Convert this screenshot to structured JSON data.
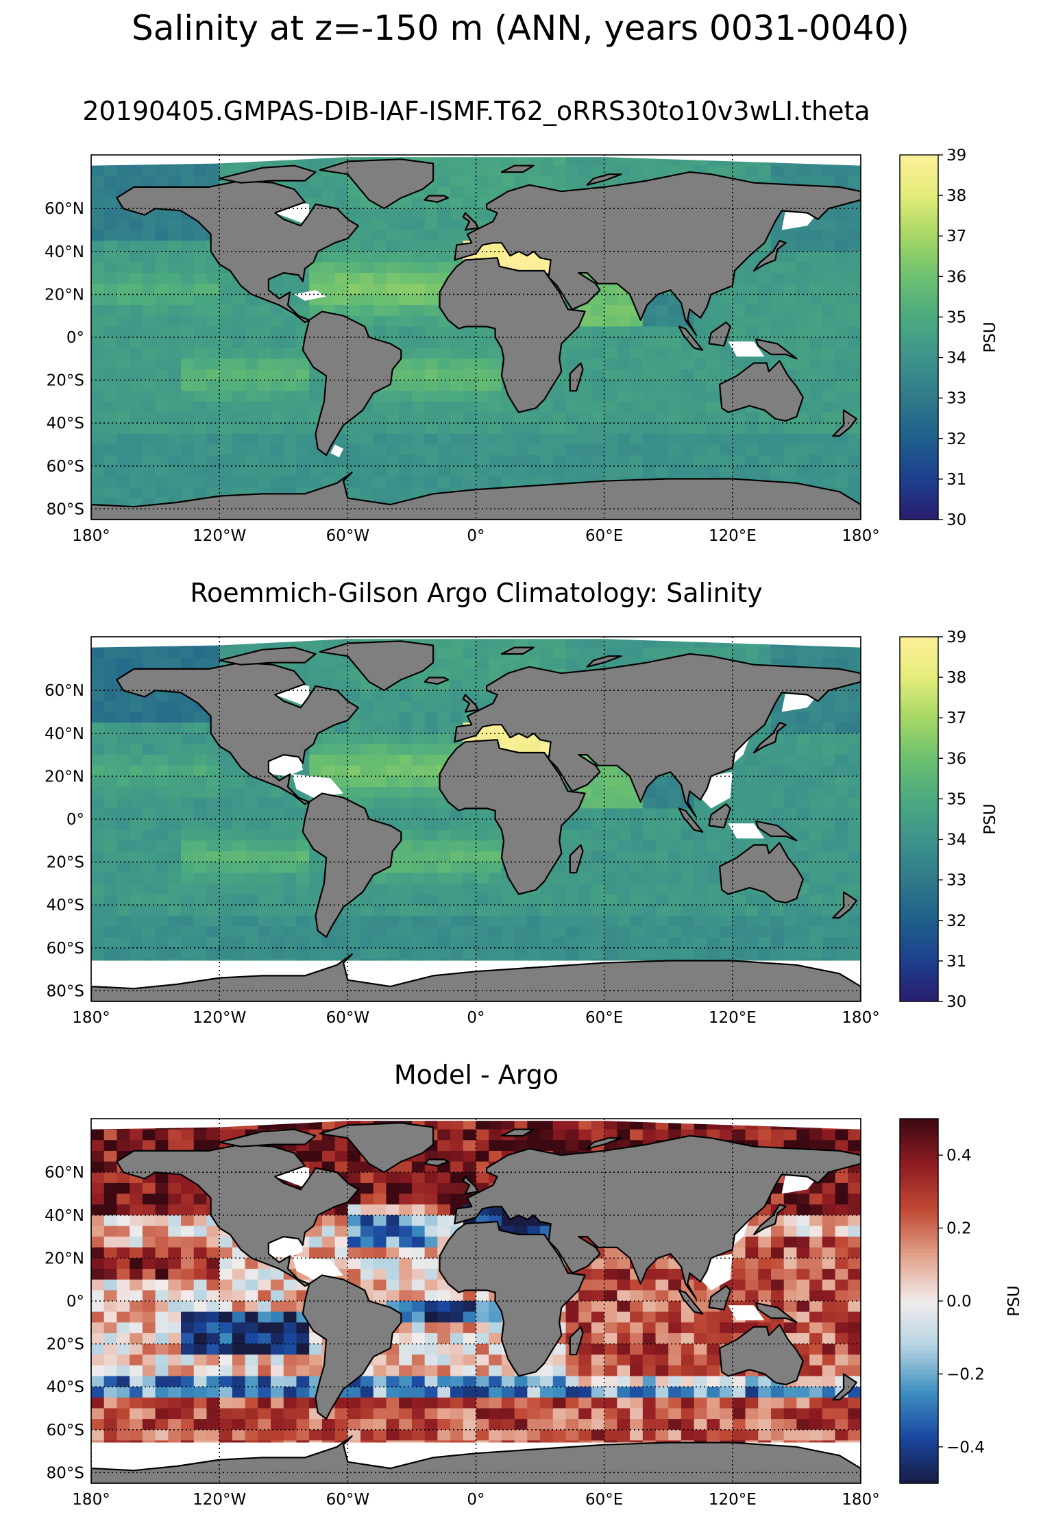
{
  "figure": {
    "suptitle": "Salinity at z=-150 m (ANN, years 0031-0040)"
  },
  "colors": {
    "land": "#7f7f7f",
    "no_data": "#ffffff",
    "haline_colormap": [
      "#2a1d6e",
      "#1e3f8f",
      "#1f5f8b",
      "#2f7a8a",
      "#3d938a",
      "#4caa80",
      "#6cc070",
      "#a6d765",
      "#e4ec7a",
      "#fdef9a"
    ],
    "balance_colormap": [
      "#181c43",
      "#1a47a0",
      "#3d8ec0",
      "#b4d3e2",
      "#f1ecec",
      "#e2a18a",
      "#c04a35",
      "#8f1c22",
      "#3c0912"
    ]
  },
  "chart_data": [
    {
      "type": "heatmap",
      "title": "20190405.GMPAS-DIB-IAF-ISMF.T62_oRRS30to10v3wLI.theta",
      "xlabel": "",
      "ylabel": "",
      "xlim": [
        -180,
        180
      ],
      "ylim": [
        -85,
        85
      ],
      "x_ticks": [
        -180,
        -120,
        -60,
        0,
        60,
        120,
        180
      ],
      "x_tick_labels": [
        "180°",
        "120°W",
        "60°W",
        "0°",
        "60°E",
        "120°E",
        "180°"
      ],
      "y_ticks": [
        -80,
        -60,
        -40,
        -20,
        0,
        20,
        40,
        60
      ],
      "y_tick_labels": [
        "80°S",
        "60°S",
        "40°S",
        "20°S",
        "0°",
        "20°N",
        "40°N",
        "60°N"
      ],
      "grid": true,
      "colorbar": {
        "label": "PSU",
        "range": [
          30,
          39
        ],
        "ticks": [
          30,
          31,
          32,
          33,
          34,
          35,
          36,
          37,
          38,
          39
        ],
        "tick_labels": [
          "30",
          "31",
          "32",
          "33",
          "34",
          "35",
          "36",
          "37",
          "38",
          "39"
        ],
        "colormap": "haline"
      }
    },
    {
      "type": "heatmap",
      "title": "Roemmich-Gilson Argo Climatology: Salinity",
      "xlabel": "",
      "ylabel": "",
      "xlim": [
        -180,
        180
      ],
      "ylim": [
        -85,
        85
      ],
      "x_ticks": [
        -180,
        -120,
        -60,
        0,
        60,
        120,
        180
      ],
      "x_tick_labels": [
        "180°",
        "120°W",
        "60°W",
        "0°",
        "60°E",
        "120°E",
        "180°"
      ],
      "y_ticks": [
        -80,
        -60,
        -40,
        -20,
        0,
        20,
        40,
        60
      ],
      "y_tick_labels": [
        "80°S",
        "60°S",
        "40°S",
        "20°S",
        "0°",
        "20°N",
        "40°N",
        "60°N"
      ],
      "grid": true,
      "colorbar": {
        "label": "PSU",
        "range": [
          30,
          39
        ],
        "ticks": [
          30,
          31,
          32,
          33,
          34,
          35,
          36,
          37,
          38,
          39
        ],
        "tick_labels": [
          "30",
          "31",
          "32",
          "33",
          "34",
          "35",
          "36",
          "37",
          "38",
          "39"
        ],
        "colormap": "haline"
      }
    },
    {
      "type": "heatmap",
      "title": "Model - Argo",
      "xlabel": "",
      "ylabel": "",
      "xlim": [
        -180,
        180
      ],
      "ylim": [
        -85,
        85
      ],
      "x_ticks": [
        -180,
        -120,
        -60,
        0,
        60,
        120,
        180
      ],
      "x_tick_labels": [
        "180°",
        "120°W",
        "60°W",
        "0°",
        "60°E",
        "120°E",
        "180°"
      ],
      "y_ticks": [
        -80,
        -60,
        -40,
        -20,
        0,
        20,
        40,
        60
      ],
      "y_tick_labels": [
        "80°S",
        "60°S",
        "40°S",
        "20°S",
        "0°",
        "20°N",
        "40°N",
        "60°N"
      ],
      "grid": true,
      "colorbar": {
        "label": "PSU",
        "range": [
          -0.5,
          0.5
        ],
        "ticks": [
          -0.4,
          -0.2,
          0.0,
          0.2,
          0.4
        ],
        "tick_labels": [
          "−0.4",
          "−0.2",
          "0.0",
          "0.2",
          "0.4"
        ],
        "colormap": "balance"
      }
    }
  ]
}
